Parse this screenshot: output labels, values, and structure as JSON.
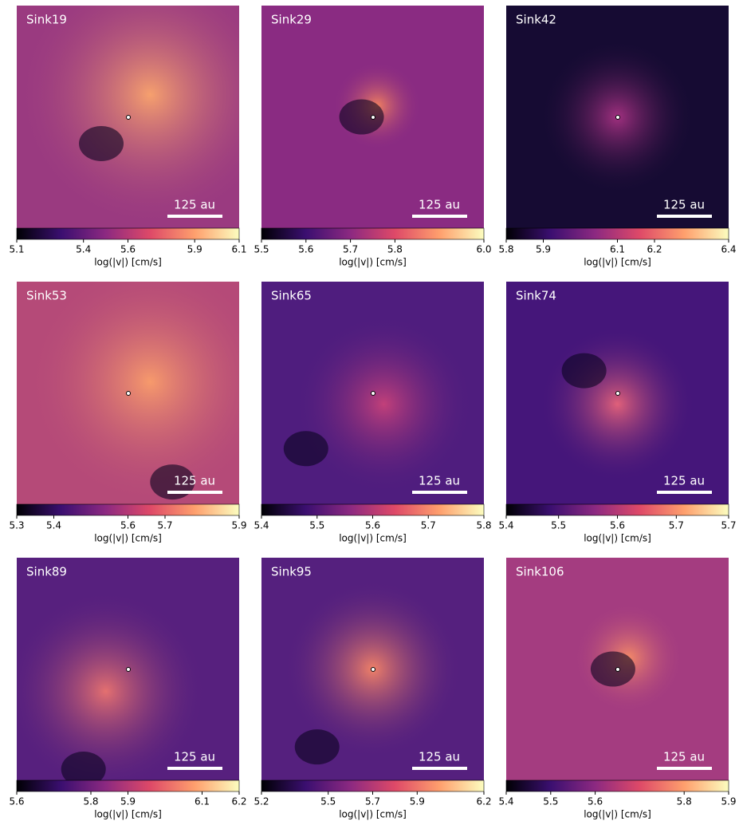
{
  "chart_data": [
    {
      "type": "heatmap",
      "title": "Sink19",
      "annotation": "125 au",
      "colorbar_label": "log(|v|) [cm/s]",
      "clim": [
        5.1,
        6.1
      ],
      "cticks": [
        5.1,
        5.4,
        5.6,
        5.9,
        6.1
      ]
    },
    {
      "type": "heatmap",
      "title": "Sink29",
      "annotation": "125 au",
      "colorbar_label": "log(|v|) [cm/s]",
      "clim": [
        5.5,
        6.0
      ],
      "cticks": [
        5.5,
        5.6,
        5.7,
        5.8,
        {
          "value": 6.0,
          "label": "6.0"
        }
      ]
    },
    {
      "type": "heatmap",
      "title": "Sink42",
      "annotation": "125 au",
      "colorbar_label": "log(|v|) [cm/s]",
      "clim": [
        5.8,
        6.4
      ],
      "cticks": [
        5.8,
        5.9,
        6.1,
        6.2,
        6.4
      ]
    },
    {
      "type": "heatmap",
      "title": "Sink53",
      "annotation": "125 au",
      "colorbar_label": "log(|v|) [cm/s]",
      "clim": [
        5.3,
        5.9
      ],
      "cticks": [
        5.3,
        5.4,
        5.6,
        5.7,
        5.9
      ]
    },
    {
      "type": "heatmap",
      "title": "Sink65",
      "annotation": "125 au",
      "colorbar_label": "log(|v|) [cm/s]",
      "clim": [
        5.4,
        5.8
      ],
      "cticks": [
        5.4,
        5.5,
        5.6,
        5.7,
        5.8
      ]
    },
    {
      "type": "heatmap",
      "title": "Sink74",
      "annotation": "125 au",
      "colorbar_label": "log(|v|) [cm/s]",
      "clim": [
        5.4,
        5.74
      ],
      "cticks": [
        5.4,
        {
          "value": 5.48,
          "label": "5.5"
        },
        {
          "value": 5.57,
          "label": "5.6"
        },
        {
          "value": 5.66,
          "label": "5.7"
        },
        {
          "value": 5.74,
          "label": "5.7"
        }
      ]
    },
    {
      "type": "heatmap",
      "title": "Sink89",
      "annotation": "125 au",
      "colorbar_label": "log(|v|) [cm/s]",
      "clim": [
        5.6,
        6.2
      ],
      "cticks": [
        5.6,
        5.8,
        5.9,
        6.1,
        6.2
      ]
    },
    {
      "type": "heatmap",
      "title": "Sink95",
      "annotation": "125 au",
      "colorbar_label": "log(|v|) [cm/s]",
      "clim": [
        5.2,
        6.2
      ],
      "cticks": [
        5.2,
        5.5,
        5.7,
        5.9,
        6.2
      ]
    },
    {
      "type": "heatmap",
      "title": "Sink106",
      "annotation": "125 au",
      "colorbar_label": "log(|v|) [cm/s]",
      "clim": [
        5.4,
        5.9
      ],
      "cticks": [
        5.4,
        5.5,
        5.6,
        5.8,
        5.9
      ]
    }
  ]
}
